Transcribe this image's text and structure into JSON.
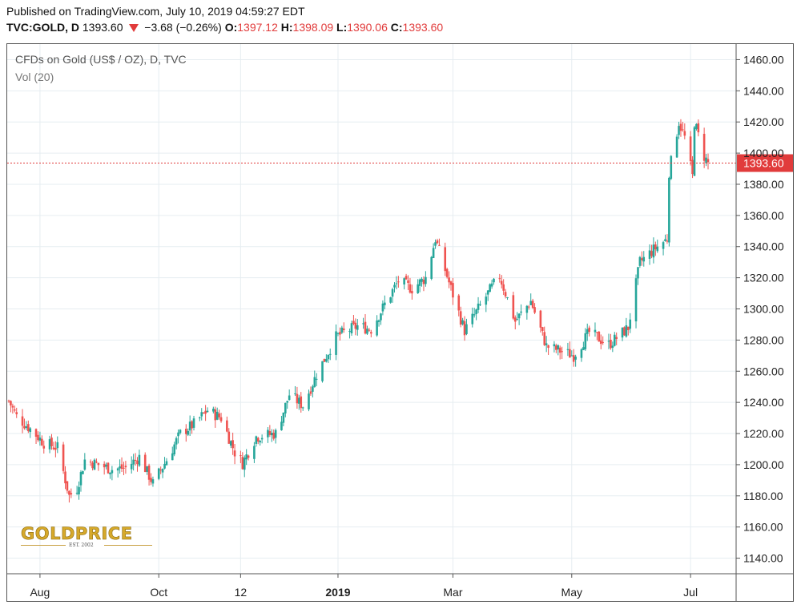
{
  "header": {
    "published": "Published on TradingView.com, July 10, 2019 04:59:27 EDT",
    "symbol": "TVC:GOLD, D",
    "last": "1393.60",
    "change": "−3.68 (−0.26%)",
    "open_label": "O:",
    "open": "1397.12",
    "high_label": "H:",
    "high": "1398.09",
    "low_label": "L:",
    "low": "1390.06",
    "close_label": "C:",
    "close": "1393.60"
  },
  "legend": {
    "title": "CFDs on Gold (US$ / OZ), D, TVC",
    "volume": "Vol (20)"
  },
  "logo": {
    "name": "GOLDPRICE",
    "tagline": "EST. 2002"
  },
  "colors": {
    "up": "#26a69a",
    "down": "#ef5350",
    "grid": "#e6edf1",
    "price_line": "#e13b3b"
  },
  "chart_data": {
    "type": "candlestick",
    "title": "CFDs on Gold (US$ / OZ), D, TVC",
    "ylim": [
      1130,
      1470
    ],
    "y_ticks": [
      1140,
      1160,
      1180,
      1200,
      1220,
      1240,
      1260,
      1280,
      1300,
      1320,
      1340,
      1360,
      1380,
      1400,
      1420,
      1440,
      1460
    ],
    "x_tick_labels": [
      "Aug",
      "Oct",
      "12",
      "2019",
      "Mar",
      "May",
      "Jul"
    ],
    "x_tick_dates": [
      "2018-08-01",
      "2018-10-01",
      "2018-11-12",
      "2019-01-01",
      "2019-03-01",
      "2019-05-01",
      "2019-07-01"
    ],
    "date_range": [
      "2018-07-16",
      "2019-07-10"
    ],
    "current_price": 1393.6,
    "current_price_label": "1393.60",
    "grid": true,
    "closes": [
      [
        "2018-07-16",
        1241
      ],
      [
        "2018-07-20",
        1231
      ],
      [
        "2018-07-27",
        1223
      ],
      [
        "2018-08-03",
        1214
      ],
      [
        "2018-08-10",
        1211
      ],
      [
        "2018-08-16",
        1180
      ],
      [
        "2018-08-20",
        1185
      ],
      [
        "2018-08-24",
        1203
      ],
      [
        "2018-08-31",
        1200
      ],
      [
        "2018-09-07",
        1197
      ],
      [
        "2018-09-14",
        1198
      ],
      [
        "2018-09-21",
        1205
      ],
      [
        "2018-09-28",
        1188
      ],
      [
        "2018-10-05",
        1203
      ],
      [
        "2018-10-12",
        1220
      ],
      [
        "2018-10-19",
        1226
      ],
      [
        "2018-10-26",
        1235
      ],
      [
        "2018-11-02",
        1230
      ],
      [
        "2018-11-09",
        1208
      ],
      [
        "2018-11-13",
        1201
      ],
      [
        "2018-11-20",
        1218
      ],
      [
        "2018-11-30",
        1220
      ],
      [
        "2018-12-07",
        1245
      ],
      [
        "2018-12-14",
        1238
      ],
      [
        "2018-12-21",
        1258
      ],
      [
        "2018-12-31",
        1282
      ],
      [
        "2019-01-04",
        1285
      ],
      [
        "2019-01-11",
        1289
      ],
      [
        "2019-01-18",
        1287
      ],
      [
        "2019-01-25",
        1303
      ],
      [
        "2019-02-01",
        1318
      ],
      [
        "2019-02-08",
        1313
      ],
      [
        "2019-02-15",
        1320
      ],
      [
        "2019-02-20",
        1345
      ],
      [
        "2019-02-28",
        1313
      ],
      [
        "2019-03-07",
        1286
      ],
      [
        "2019-03-14",
        1300
      ],
      [
        "2019-03-21",
        1314
      ],
      [
        "2019-03-25",
        1321
      ],
      [
        "2019-04-02",
        1292
      ],
      [
        "2019-04-10",
        1305
      ],
      [
        "2019-04-18",
        1276
      ],
      [
        "2019-04-23",
        1274
      ],
      [
        "2019-05-02",
        1270
      ],
      [
        "2019-05-10",
        1285
      ],
      [
        "2019-05-20",
        1277
      ],
      [
        "2019-05-30",
        1288
      ],
      [
        "2019-06-05",
        1330
      ],
      [
        "2019-06-12",
        1338
      ],
      [
        "2019-06-19",
        1345
      ],
      [
        "2019-06-20",
        1388
      ],
      [
        "2019-06-25",
        1420
      ],
      [
        "2019-06-28",
        1410
      ],
      [
        "2019-07-02",
        1385
      ],
      [
        "2019-07-03",
        1420
      ],
      [
        "2019-07-08",
        1398
      ],
      [
        "2019-07-10",
        1393.6
      ]
    ]
  }
}
